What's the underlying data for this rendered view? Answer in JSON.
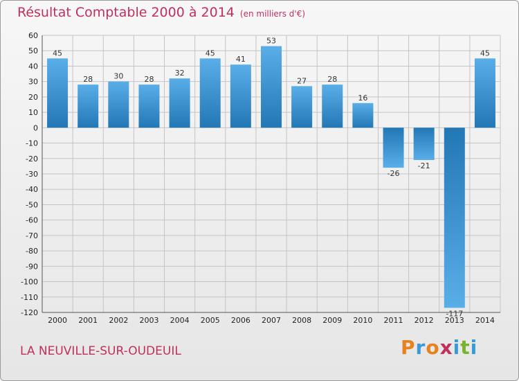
{
  "header": {
    "title": "Résultat Comptable 2000 à 2014",
    "unit": "(en milliers d'€)"
  },
  "footer": {
    "commune": "LA NEUVILLE-SUR-OUDEUIL",
    "logo": "Proxiti",
    "logo_colors": [
      "#e8821e",
      "#3a9ad8",
      "#e8821e",
      "#c0305a",
      "#3a9ad8",
      "#7ab22e",
      "#3a9ad8"
    ]
  },
  "chart_data": {
    "type": "bar",
    "title": "Résultat Comptable 2000 à 2014",
    "subtitle": "(en milliers d'€)",
    "categories": [
      "2000",
      "2001",
      "2002",
      "2003",
      "2004",
      "2005",
      "2006",
      "2007",
      "2008",
      "2009",
      "2010",
      "2011",
      "2012",
      "2013",
      "2014"
    ],
    "values": [
      45,
      28,
      30,
      28,
      32,
      45,
      41,
      53,
      27,
      28,
      16,
      -26,
      -21,
      -117,
      45
    ],
    "value_labels": [
      "45",
      "28",
      "30",
      "28",
      "32",
      "45",
      "41",
      "53",
      "27",
      "28",
      "16",
      "-26",
      "-21",
      "-117",
      "45"
    ],
    "ylim": [
      -120,
      60
    ],
    "yticks": [
      60,
      50,
      40,
      30,
      20,
      10,
      0,
      -10,
      -20,
      -30,
      -40,
      -50,
      -60,
      -70,
      -80,
      -90,
      -100,
      -110,
      -120
    ],
    "ytick_labels": [
      "60",
      "50",
      "40",
      "30",
      "20",
      "10",
      "0",
      "-10",
      "-20",
      "-30",
      "-40",
      "-50",
      "-60",
      "-70",
      "-80",
      "-90",
      "-100",
      "-110",
      "-120"
    ],
    "grid": true,
    "bar_color_dark": "#2277b5",
    "bar_color_light": "#5aaee8"
  }
}
